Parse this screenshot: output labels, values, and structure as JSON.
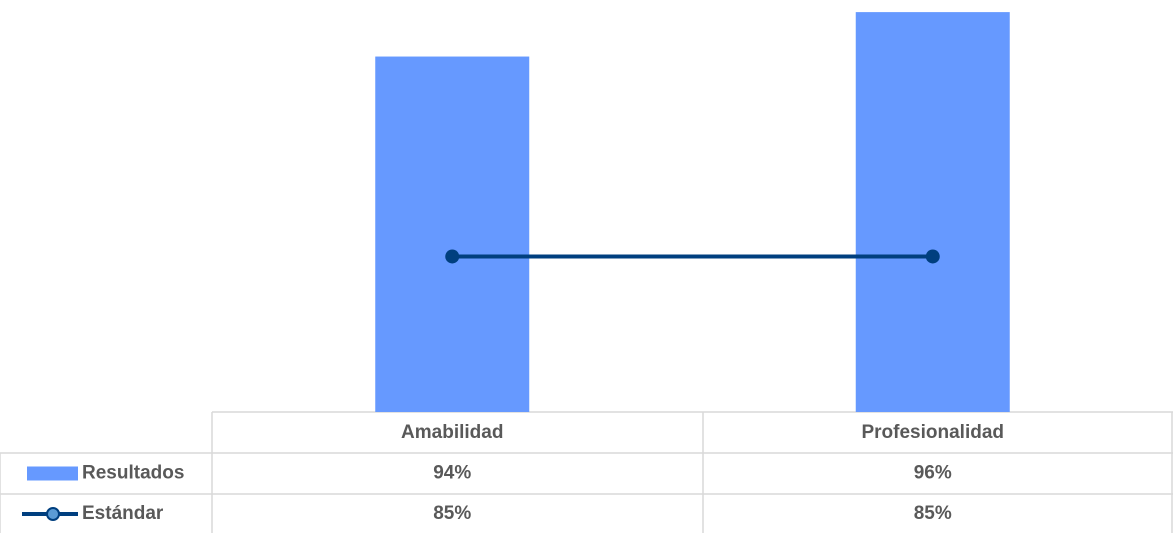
{
  "chart_data": {
    "type": "bar_line",
    "categories": [
      "Amabilidad",
      "Profesionalidad"
    ],
    "series": [
      {
        "name": "Resultados",
        "type": "bar",
        "color": "#6699ff",
        "values": [
          94,
          96
        ],
        "value_labels": [
          "94%",
          "96%"
        ]
      },
      {
        "name": "Estándar",
        "type": "line",
        "color": "#003f7f",
        "values": [
          85,
          85
        ],
        "value_labels": [
          "85%",
          "85%"
        ]
      }
    ],
    "ylim": [
      78,
      96.5
    ]
  }
}
